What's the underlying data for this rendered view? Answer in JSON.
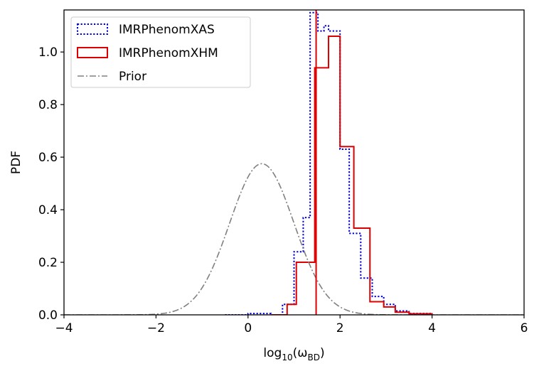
{
  "chart_data": {
    "type": "step-histogram",
    "xlabel_base": "log",
    "xlabel_sub": "10",
    "xlabel_arg_open": "(ω",
    "xlabel_arg_sub": "BD",
    "xlabel_arg_close": ")",
    "ylabel": "PDF",
    "xlim": [
      -4,
      6
    ],
    "ylim": [
      0,
      1.16
    ],
    "xticks": [
      -4,
      -2,
      0,
      2,
      4,
      6
    ],
    "xtick_labels": [
      "−4",
      "−2",
      "0",
      "2",
      "4",
      "6"
    ],
    "yticks": [
      0.0,
      0.2,
      0.4,
      0.6,
      0.8,
      1.0
    ],
    "ytick_labels": [
      "0.0",
      "0.2",
      "0.4",
      "0.6",
      "0.8",
      "1.0"
    ],
    "legend_position": "upper-left",
    "series": [
      {
        "name": "IMRPhenomXAS",
        "color": "#0000dd",
        "style": "dotted",
        "bin_edges": [
          -0.5,
          0.0,
          0.5,
          0.75,
          1.0,
          1.2,
          1.35,
          1.45,
          1.52,
          1.65,
          1.75,
          2.0,
          2.2,
          2.45,
          2.7,
          2.95,
          3.2,
          3.5,
          4.0
        ],
        "values": [
          0.0,
          0.005,
          0.0,
          0.04,
          0.24,
          0.37,
          1.15,
          1.15,
          1.08,
          1.1,
          1.08,
          0.63,
          0.31,
          0.14,
          0.07,
          0.04,
          0.015,
          0.005
        ]
      },
      {
        "name": "IMRPhenomXHM",
        "color": "#dd0000",
        "style": "solid",
        "bin_edges": [
          0.5,
          0.85,
          1.05,
          1.45,
          1.5,
          1.75,
          2.0,
          2.3,
          2.65,
          2.95,
          3.2,
          3.5,
          4.0
        ],
        "values": [
          0.0,
          0.04,
          0.2,
          0.94,
          0.94,
          1.06,
          0.64,
          0.33,
          0.05,
          0.03,
          0.01,
          0.004
        ]
      },
      {
        "name": "Prior",
        "color": "#808080",
        "style": "dashdot",
        "distribution": "gaussian",
        "mean": 0.3,
        "sigma": 0.7,
        "peak": 0.575
      }
    ],
    "vertical_line": {
      "x": 1.48,
      "color": "#dd0000"
    }
  }
}
